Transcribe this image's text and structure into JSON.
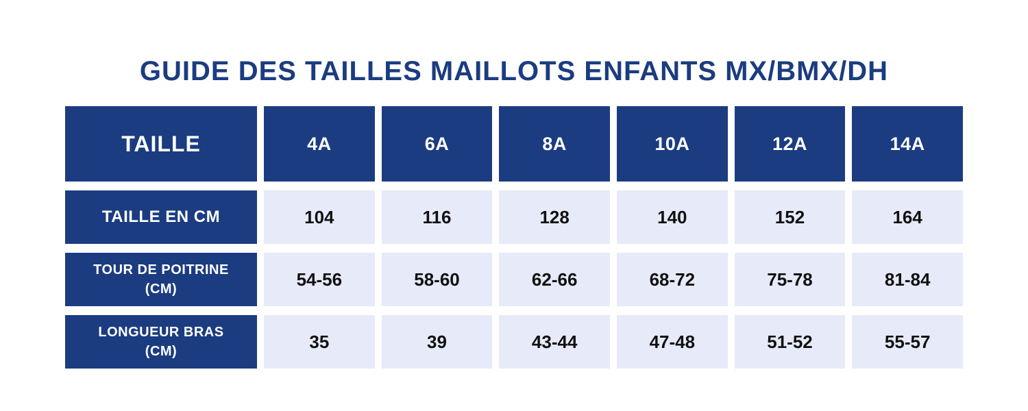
{
  "title": "GUIDE DES TAILLES MAILLOTS ENFANTS MX/BMX/DH",
  "table": {
    "header_label": "TAILLE",
    "sizes": [
      "4A",
      "6A",
      "8A",
      "10A",
      "12A",
      "14A"
    ],
    "rows": [
      {
        "label_line1": "TAILLE EN CM",
        "label_line2": "",
        "values": [
          "104",
          "116",
          "128",
          "140",
          "152",
          "164"
        ]
      },
      {
        "label_line1": "TOUR DE POITRINE",
        "label_line2": "(CM)",
        "values": [
          "54-56",
          "58-60",
          "62-66",
          "68-72",
          "75-78",
          "81-84"
        ]
      },
      {
        "label_line1": "LONGUEUR BRAS",
        "label_line2": "(CM)",
        "values": [
          "35",
          "39",
          "43-44",
          "47-48",
          "51-52",
          "55-57"
        ]
      }
    ]
  },
  "colors": {
    "header_background": "#1b3c80",
    "cell_background": "#e7eaf8",
    "title_text": "#1b3c80",
    "value_text": "#111111",
    "page_background": "#ffffff"
  },
  "chart_data": {
    "type": "table",
    "title": "GUIDE DES TAILLES MAILLOTS ENFANTS MX/BMX/DH",
    "columns": [
      "TAILLE",
      "4A",
      "6A",
      "8A",
      "10A",
      "12A",
      "14A"
    ],
    "rows": [
      [
        "TAILLE EN CM",
        "104",
        "116",
        "128",
        "140",
        "152",
        "164"
      ],
      [
        "TOUR DE POITRINE (CM)",
        "54-56",
        "58-60",
        "62-66",
        "68-72",
        "75-78",
        "81-84"
      ],
      [
        "LONGUEUR BRAS (CM)",
        "35",
        "39",
        "43-44",
        "47-48",
        "51-52",
        "55-57"
      ]
    ]
  }
}
